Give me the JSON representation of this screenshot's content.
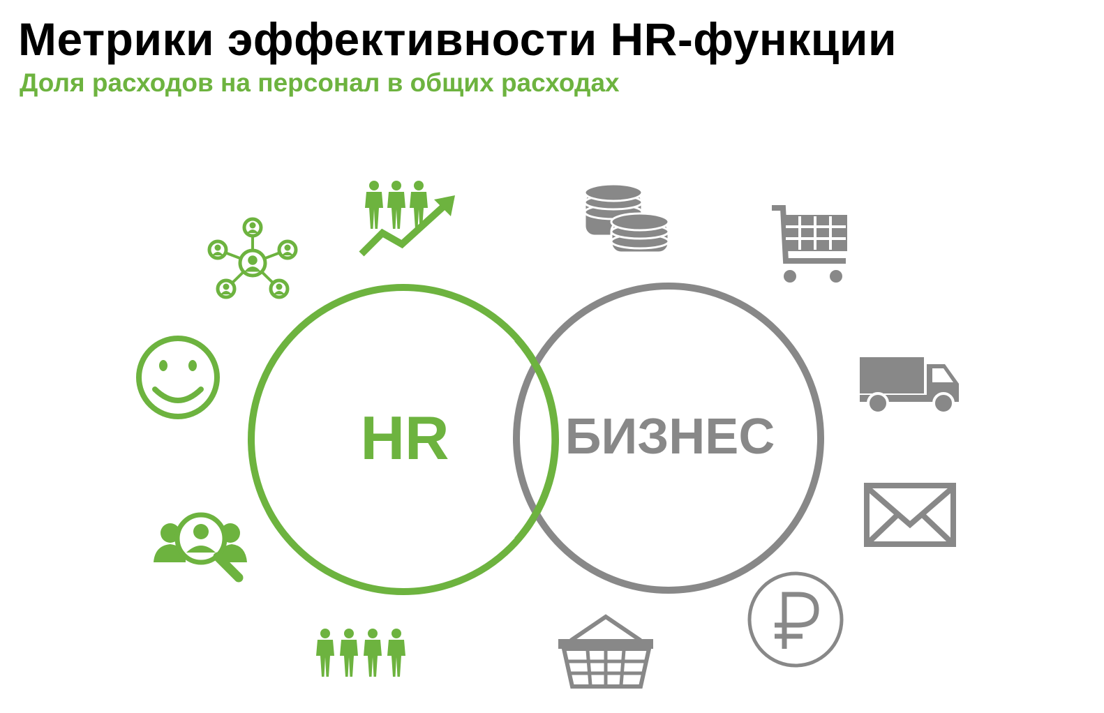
{
  "title": "Метрики эффективности HR-функции",
  "subtitle": "Доля расходов на персонал в общих расходах",
  "colors": {
    "hr_green": "#6db33f",
    "business_gray": "#888888",
    "title_black": "#000000"
  },
  "circles": {
    "hr": {
      "label": "HR"
    },
    "business": {
      "label": "БИЗНЕС"
    }
  },
  "hr_icons": [
    "team-growth-chart-icon",
    "people-network-icon",
    "smiley-face-icon",
    "candidate-search-icon",
    "team-group-icon"
  ],
  "business_icons": [
    "coin-stacks-icon",
    "shopping-cart-icon",
    "delivery-truck-icon",
    "envelope-icon",
    "ruble-coin-icon",
    "basket-icon"
  ]
}
